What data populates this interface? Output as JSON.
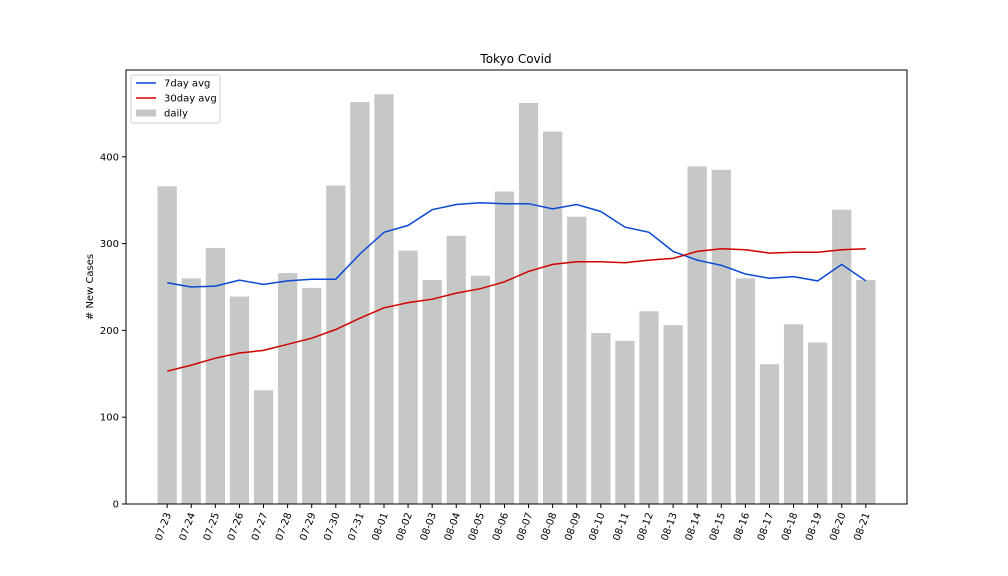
{
  "chart_data": {
    "type": "bar",
    "title": "Tokyo Covid",
    "xlabel": "",
    "ylabel": "# New Cases",
    "ylim": [
      0,
      500
    ],
    "yticks": [
      0,
      100,
      200,
      300,
      400
    ],
    "grid": false,
    "legend_position": "top-left",
    "categories": [
      "07-23",
      "07-24",
      "07-25",
      "07-26",
      "07-27",
      "07-28",
      "07-29",
      "07-30",
      "07-31",
      "08-01",
      "08-02",
      "08-03",
      "08-04",
      "08-05",
      "08-06",
      "08-07",
      "08-08",
      "08-09",
      "08-10",
      "08-11",
      "08-12",
      "08-13",
      "08-14",
      "08-15",
      "08-16",
      "08-17",
      "08-18",
      "08-19",
      "08-20",
      "08-21"
    ],
    "series": [
      {
        "name": "daily",
        "kind": "bar",
        "color": "#c5c8c7",
        "values": [
          366,
          260,
          295,
          239,
          131,
          266,
          249,
          367,
          463,
          472,
          292,
          258,
          309,
          263,
          360,
          462,
          429,
          331,
          197,
          188,
          222,
          206,
          389,
          385,
          260,
          161,
          207,
          186,
          339,
          258
        ]
      },
      {
        "name": "7day avg",
        "kind": "line",
        "color": "#0b49d6",
        "values": [
          255,
          250,
          251,
          258,
          253,
          257,
          259,
          259,
          288,
          313,
          321,
          339,
          345,
          347,
          346,
          346,
          340,
          345,
          337,
          319,
          313,
          291,
          281,
          275,
          265,
          260,
          262,
          257,
          276,
          257
        ]
      },
      {
        "name": "30day avg",
        "kind": "line",
        "color": "#d00000",
        "values": [
          153,
          160,
          168,
          174,
          177,
          184,
          191,
          201,
          214,
          226,
          232,
          236,
          243,
          248,
          256,
          268,
          276,
          279,
          279,
          278,
          281,
          283,
          291,
          294,
          293,
          289,
          290,
          290,
          293,
          294
        ]
      }
    ],
    "legend": [
      "7day avg",
      "30day avg",
      "daily"
    ]
  }
}
